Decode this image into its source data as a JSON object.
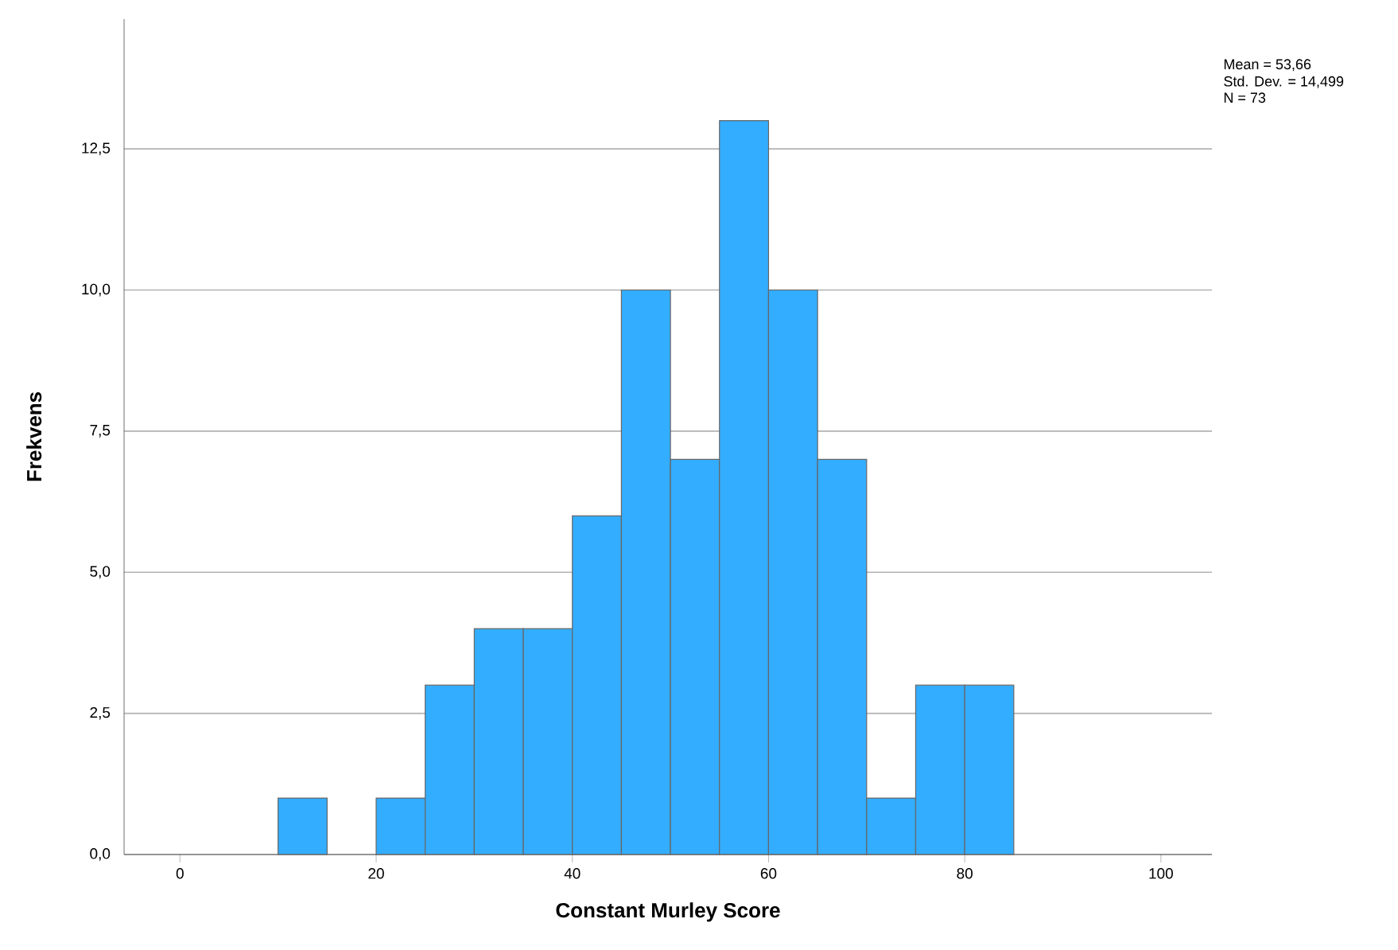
{
  "chart_data": {
    "type": "histogram",
    "xlabel": "Constant Murley Score",
    "ylabel": "Frekvens",
    "bins": [
      10,
      15,
      20,
      25,
      30,
      35,
      40,
      45,
      50,
      55,
      60,
      65,
      70,
      75,
      80,
      85
    ],
    "values": [
      1,
      0,
      1,
      3,
      4,
      4,
      6,
      10,
      7,
      13,
      10,
      7,
      1,
      3,
      3
    ],
    "color": "#33adff",
    "xlim": [
      -5.7,
      105.2
    ],
    "ylim": [
      0,
      14.8
    ],
    "xticks": [
      0,
      20,
      40,
      60,
      80,
      100
    ],
    "yticks": [
      {
        "value": 0,
        "label": "0,0"
      },
      {
        "value": 2.5,
        "label": "2,5"
      },
      {
        "value": 5,
        "label": "5,0"
      },
      {
        "value": 7.5,
        "label": "7,5"
      },
      {
        "value": 10,
        "label": "10,0"
      },
      {
        "value": 12.5,
        "label": "12,5"
      }
    ],
    "grid": "y",
    "annotations": [
      "Mean = 53,66",
      "Std. Dev. = 14,499",
      "N = 73"
    ]
  }
}
